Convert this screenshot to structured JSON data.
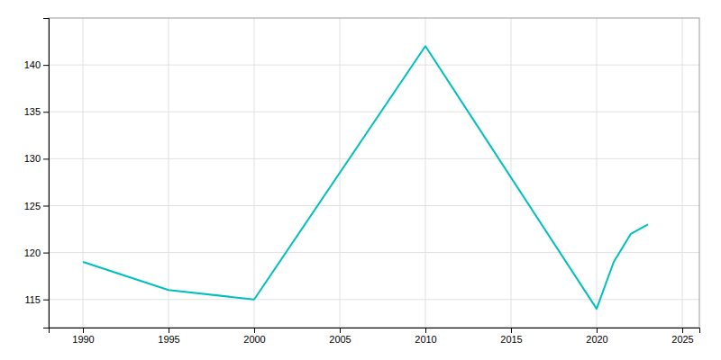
{
  "chart_data": {
    "type": "line",
    "x": [
      1990,
      1995,
      2000,
      2010,
      2020,
      2021,
      2022,
      2023
    ],
    "values": [
      119,
      116,
      115,
      142,
      114,
      119,
      122,
      123
    ],
    "color": "#00BFBF",
    "xlim": [
      1988,
      2026
    ],
    "ylim": [
      112,
      145
    ],
    "xticks": [
      1990,
      1995,
      2000,
      2005,
      2010,
      2015,
      2020,
      2025
    ],
    "yticks": [
      115,
      120,
      125,
      130,
      135,
      140
    ],
    "grid": true
  }
}
